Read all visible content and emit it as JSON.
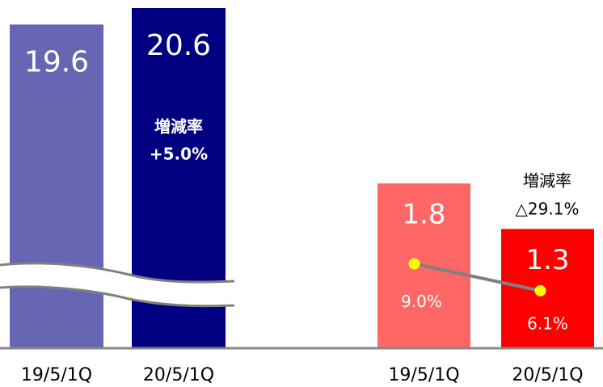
{
  "chart_data": [
    {
      "type": "bar",
      "categories": [
        "19/5/1Q",
        "20/5/1Q"
      ],
      "values": [
        19.6,
        20.6
      ],
      "colors": [
        "#6666b3",
        "#000080"
      ],
      "annotation": [
        "増減率",
        "+5.0%"
      ]
    },
    {
      "type": "bar",
      "categories": [
        "19/5/1Q",
        "20/5/1Q"
      ],
      "values": [
        1.8,
        1.3
      ],
      "colors": [
        "#ff6666",
        "#ff0000"
      ],
      "annotation": [
        "増減率",
        "△29.1%"
      ],
      "line": {
        "values": [
          9.0,
          6.1
        ],
        "value_labels": [
          "9.0%",
          "6.1%"
        ],
        "color": "#808080",
        "marker_color": "#ffff00"
      }
    }
  ]
}
